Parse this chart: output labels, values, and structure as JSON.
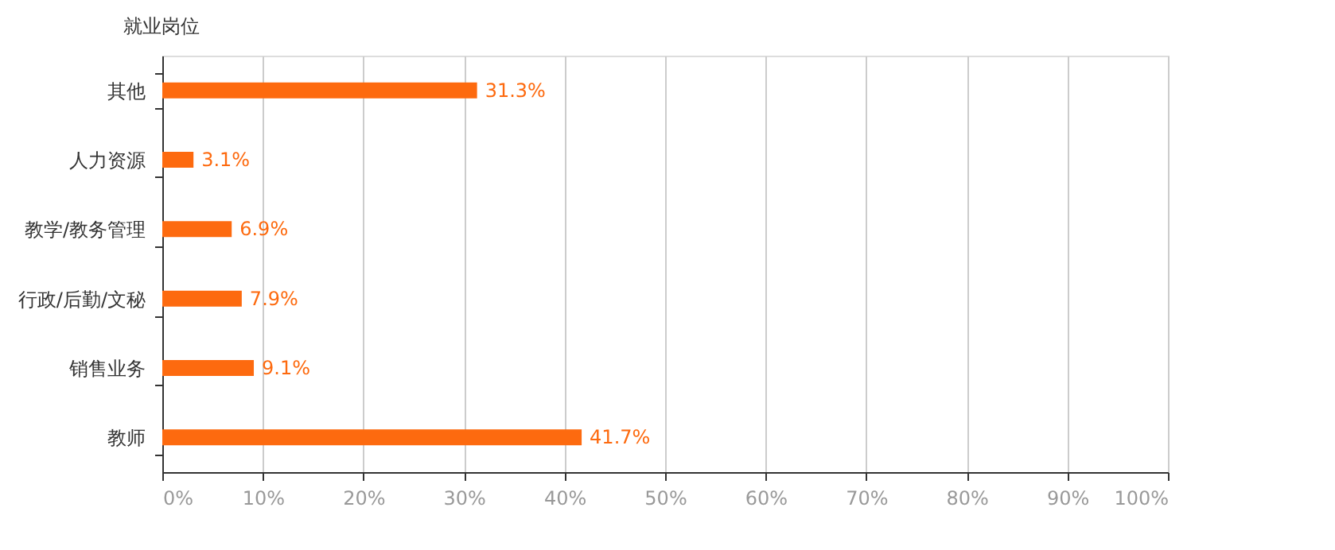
{
  "chart_data": {
    "type": "bar",
    "orientation": "horizontal",
    "ylabel": "就业岗位",
    "categories": [
      "其他",
      "人力资源",
      "教学/教务管理",
      "行政/后勤/文秘",
      "销售业务",
      "教师"
    ],
    "values": [
      31.3,
      3.1,
      6.9,
      7.9,
      9.1,
      41.7
    ],
    "value_labels": [
      "31.3%",
      "3.1%",
      "6.9%",
      "7.9%",
      "9.1%",
      "41.7%"
    ],
    "color": "#fd6a0f",
    "xlim": [
      0,
      100
    ],
    "xticks": [
      {
        "value": 0,
        "label": "0%"
      },
      {
        "value": 10,
        "label": "10%"
      },
      {
        "value": 20,
        "label": "20%"
      },
      {
        "value": 30,
        "label": "30%"
      },
      {
        "value": 40,
        "label": "40%"
      },
      {
        "value": 50,
        "label": "50%"
      },
      {
        "value": 60,
        "label": "60%"
      },
      {
        "value": 70,
        "label": "70%"
      },
      {
        "value": 80,
        "label": "80%"
      },
      {
        "value": 90,
        "label": "90%"
      },
      {
        "value": 100,
        "label": "100%"
      }
    ],
    "grid": "x"
  }
}
